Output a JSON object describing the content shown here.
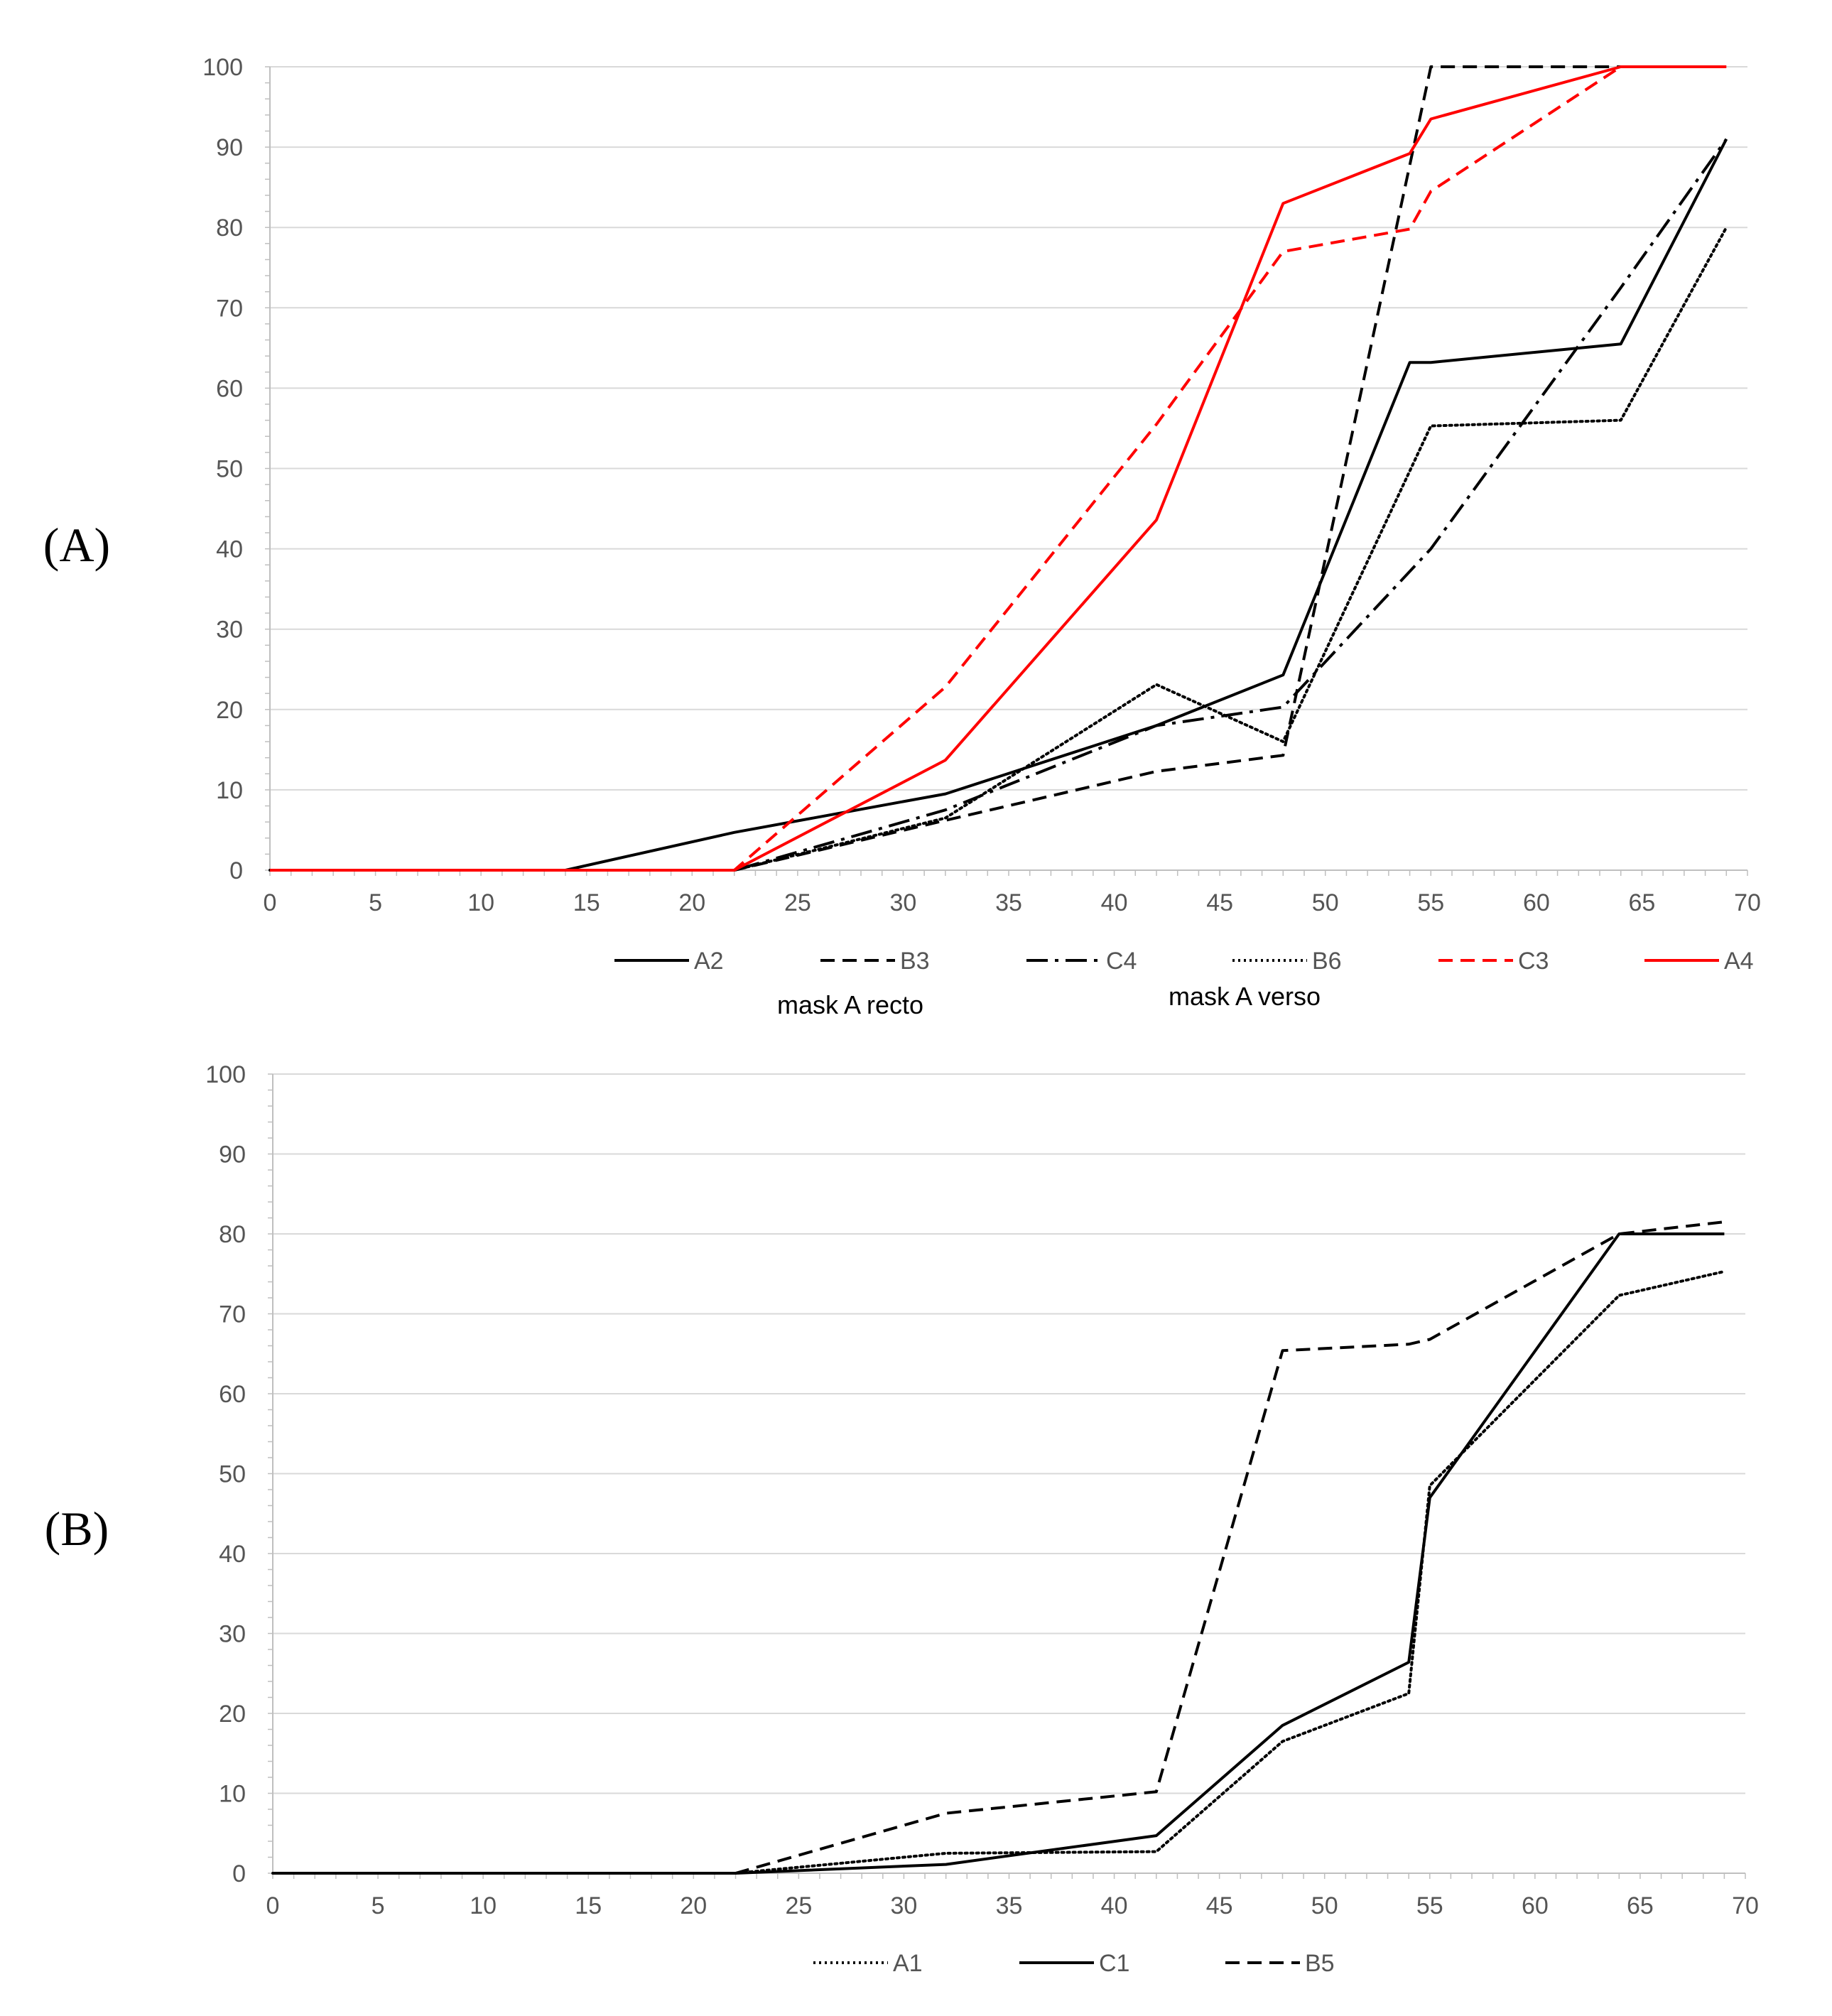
{
  "chart_data": [
    {
      "type": "line",
      "panel": "A",
      "panel_label": "(A)",
      "title": "",
      "xlabel": "",
      "ylabel": "",
      "xlim": [
        0,
        70
      ],
      "ylim": [
        0,
        100
      ],
      "xticks": [
        0,
        5,
        10,
        15,
        20,
        25,
        30,
        35,
        40,
        45,
        50,
        55,
        60,
        65,
        70
      ],
      "yticks": [
        0,
        10,
        20,
        30,
        40,
        50,
        60,
        70,
        80,
        90,
        100
      ],
      "grid": true,
      "legend_position": "bottom",
      "annotations": [
        "mask A recto",
        "mask A verso"
      ],
      "series": [
        {
          "name": "A2",
          "color": "#000000",
          "dash": "solid",
          "x": [
            0,
            14,
            22,
            32,
            42,
            48,
            54,
            55,
            64,
            69
          ],
          "y": [
            0,
            0,
            4.7,
            9.5,
            18,
            24.3,
            63.2,
            63.2,
            65.5,
            91
          ]
        },
        {
          "name": "B3",
          "color": "#000000",
          "dash": "dashed",
          "x": [
            0,
            22,
            32,
            42,
            48,
            55,
            64,
            69
          ],
          "y": [
            0,
            0,
            6.2,
            12.3,
            14.3,
            100,
            100,
            100
          ]
        },
        {
          "name": "C4",
          "color": "#000000",
          "dash": "dashdot",
          "x": [
            0,
            22,
            32,
            42,
            48,
            55,
            64,
            69
          ],
          "y": [
            0,
            0,
            7.5,
            18,
            20.3,
            40,
            72.5,
            91
          ]
        },
        {
          "name": "B6",
          "color": "#000000",
          "dash": "dotted",
          "x": [
            0,
            22,
            32,
            42,
            48,
            55,
            64,
            69
          ],
          "y": [
            0,
            0,
            6.5,
            23.1,
            16,
            55.3,
            56,
            80
          ]
        },
        {
          "name": "C3",
          "color": "#ff0000",
          "dash": "dashed",
          "x": [
            0,
            22,
            32,
            42,
            48,
            54,
            55,
            64,
            69
          ],
          "y": [
            0,
            0,
            22.8,
            55.5,
            77,
            79.8,
            84.5,
            100,
            100
          ]
        },
        {
          "name": "A4",
          "color": "#ff0000",
          "dash": "solid",
          "x": [
            0,
            22,
            32,
            42,
            48,
            54,
            55,
            64,
            69
          ],
          "y": [
            0,
            0,
            13.7,
            43.6,
            83,
            89.2,
            93.5,
            100,
            100
          ]
        }
      ]
    },
    {
      "type": "line",
      "panel": "B",
      "panel_label": "(B)",
      "title": "",
      "xlabel": "",
      "ylabel": "",
      "xlim": [
        0,
        70
      ],
      "ylim": [
        0,
        100
      ],
      "xticks": [
        0,
        5,
        10,
        15,
        20,
        25,
        30,
        35,
        40,
        45,
        50,
        55,
        60,
        65,
        70
      ],
      "yticks": [
        0,
        10,
        20,
        30,
        40,
        50,
        60,
        70,
        80,
        90,
        100
      ],
      "grid": true,
      "legend_position": "bottom",
      "series": [
        {
          "name": "A1",
          "color": "#000000",
          "dash": "dotted",
          "x": [
            0,
            22,
            32,
            42,
            48,
            54,
            55,
            64,
            69
          ],
          "y": [
            0,
            0,
            2.5,
            2.7,
            16.5,
            22.5,
            48.5,
            72.3,
            75.3
          ]
        },
        {
          "name": "C1",
          "color": "#000000",
          "dash": "solid",
          "x": [
            0,
            22,
            32,
            42,
            48,
            54,
            55,
            64,
            69
          ],
          "y": [
            0,
            0,
            1.1,
            4.7,
            18.5,
            26.4,
            47,
            80,
            80
          ]
        },
        {
          "name": "B5",
          "color": "#000000",
          "dash": "dashed",
          "x": [
            0,
            22,
            32,
            42,
            48,
            54,
            55,
            64,
            69
          ],
          "y": [
            0,
            0,
            7.5,
            10.2,
            65.4,
            66.2,
            66.8,
            80,
            81.5
          ]
        }
      ]
    }
  ]
}
